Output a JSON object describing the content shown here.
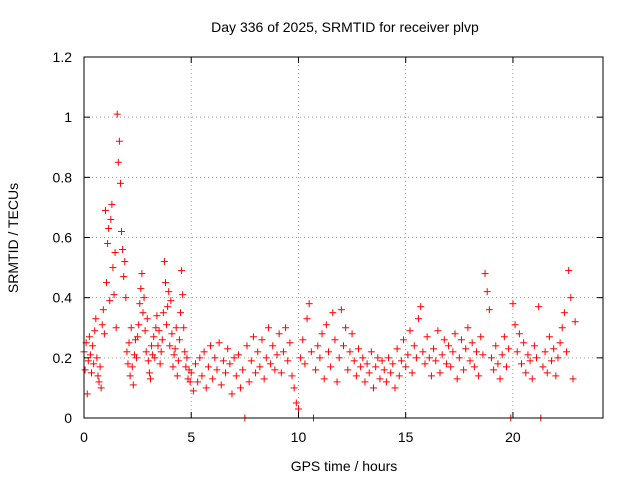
{
  "chart_data": {
    "type": "scatter",
    "title": "Day 336 of 2025, SRMTID for receiver plvp",
    "xlabel": "GPS time / hours",
    "ylabel": "SRMTID / TECUs",
    "xlim": [
      0,
      24.2
    ],
    "ylim": [
      0,
      1.2
    ],
    "xticks": [
      0,
      5,
      10,
      15,
      20
    ],
    "xtick_labels": [
      "0",
      "5",
      "10",
      "15",
      "20"
    ],
    "yticks": [
      0,
      0.2,
      0.4,
      0.6,
      0.8,
      1,
      1.2
    ],
    "ytick_labels": [
      "0",
      "0.2",
      "0.4",
      "0.6",
      "0.8",
      "1",
      "1.2"
    ],
    "grid": true,
    "marker": "+",
    "color": "#ff0000",
    "series": [
      {
        "name": "SRMTID",
        "points": [
          [
            0.0,
            0.22
          ],
          [
            0.05,
            0.16
          ],
          [
            0.1,
            0.25
          ],
          [
            0.15,
            0.08
          ],
          [
            0.2,
            0.19
          ],
          [
            0.25,
            0.27
          ],
          [
            0.3,
            0.21
          ],
          [
            0.35,
            0.15
          ],
          [
            0.4,
            0.24
          ],
          [
            0.45,
            0.18
          ],
          [
            0.5,
            0.29
          ],
          [
            0.55,
            0.33
          ],
          [
            0.6,
            0.2
          ],
          [
            0.65,
            0.14
          ],
          [
            0.7,
            0.12
          ],
          [
            0.75,
            0.17
          ],
          [
            0.8,
            0.1
          ],
          [
            0.85,
            0.31
          ],
          [
            0.9,
            0.36
          ],
          [
            0.95,
            0.28
          ],
          [
            1.0,
            0.69
          ],
          [
            1.05,
            0.45
          ],
          [
            1.1,
            0.58
          ],
          [
            1.15,
            0.63
          ],
          [
            1.2,
            0.39
          ],
          [
            1.25,
            0.66
          ],
          [
            1.3,
            0.71
          ],
          [
            1.35,
            0.5
          ],
          [
            1.4,
            0.41
          ],
          [
            1.45,
            0.55
          ],
          [
            1.5,
            0.3
          ],
          [
            1.55,
            1.01
          ],
          [
            1.6,
            0.85
          ],
          [
            1.65,
            0.92
          ],
          [
            1.7,
            0.78
          ],
          [
            1.75,
            0.62
          ],
          [
            1.8,
            0.56
          ],
          [
            1.85,
            0.47
          ],
          [
            1.9,
            0.52
          ],
          [
            1.95,
            0.4
          ],
          [
            2.0,
            0.22
          ],
          [
            2.05,
            0.18
          ],
          [
            2.1,
            0.25
          ],
          [
            2.15,
            0.14
          ],
          [
            2.2,
            0.3
          ],
          [
            2.25,
            0.17
          ],
          [
            2.3,
            0.11
          ],
          [
            2.35,
            0.21
          ],
          [
            2.4,
            0.26
          ],
          [
            2.45,
            0.2
          ],
          [
            2.5,
            0.27
          ],
          [
            2.55,
            0.31
          ],
          [
            2.6,
            0.38
          ],
          [
            2.65,
            0.43
          ],
          [
            2.7,
            0.48
          ],
          [
            2.75,
            0.35
          ],
          [
            2.8,
            0.4
          ],
          [
            2.85,
            0.29
          ],
          [
            2.9,
            0.22
          ],
          [
            2.95,
            0.33
          ],
          [
            3.0,
            0.19
          ],
          [
            3.05,
            0.15
          ],
          [
            3.1,
            0.13
          ],
          [
            3.15,
            0.24
          ],
          [
            3.2,
            0.21
          ],
          [
            3.25,
            0.27
          ],
          [
            3.3,
            0.2
          ],
          [
            3.35,
            0.3
          ],
          [
            3.4,
            0.34
          ],
          [
            3.45,
            0.24
          ],
          [
            3.5,
            0.29
          ],
          [
            3.55,
            0.18
          ],
          [
            3.6,
            0.22
          ],
          [
            3.65,
            0.26
          ],
          [
            3.7,
            0.35
          ],
          [
            3.75,
            0.52
          ],
          [
            3.8,
            0.45
          ],
          [
            3.85,
            0.31
          ],
          [
            3.9,
            0.37
          ],
          [
            3.95,
            0.42
          ],
          [
            4.0,
            0.24
          ],
          [
            4.05,
            0.39
          ],
          [
            4.1,
            0.28
          ],
          [
            4.15,
            0.17
          ],
          [
            4.2,
            0.21
          ],
          [
            4.25,
            0.23
          ],
          [
            4.3,
            0.3
          ],
          [
            4.35,
            0.14
          ],
          [
            4.4,
            0.19
          ],
          [
            4.45,
            0.26
          ],
          [
            4.5,
            0.35
          ],
          [
            4.55,
            0.49
          ],
          [
            4.6,
            0.41
          ],
          [
            4.65,
            0.3
          ],
          [
            4.7,
            0.22
          ],
          [
            4.75,
            0.17
          ],
          [
            4.8,
            0.2
          ],
          [
            4.85,
            0.13
          ],
          [
            4.9,
            0.16
          ],
          [
            4.95,
            0.12
          ],
          [
            5.0,
            0.15
          ],
          [
            5.1,
            0.09
          ],
          [
            5.2,
            0.18
          ],
          [
            5.3,
            0.12
          ],
          [
            5.4,
            0.2
          ],
          [
            5.5,
            0.14
          ],
          [
            5.6,
            0.22
          ],
          [
            5.7,
            0.1
          ],
          [
            5.8,
            0.17
          ],
          [
            5.9,
            0.24
          ],
          [
            6.0,
            0.13
          ],
          [
            6.1,
            0.2
          ],
          [
            6.2,
            0.16
          ],
          [
            6.3,
            0.25
          ],
          [
            6.4,
            0.11
          ],
          [
            6.5,
            0.19
          ],
          [
            6.6,
            0.15
          ],
          [
            6.7,
            0.23
          ],
          [
            6.8,
            0.18
          ],
          [
            6.9,
            0.08
          ],
          [
            7.0,
            0.2
          ],
          [
            7.1,
            0.14
          ],
          [
            7.2,
            0.21
          ],
          [
            7.3,
            0.1
          ],
          [
            7.4,
            0.16
          ],
          [
            7.5,
            0.0
          ],
          [
            7.6,
            0.24
          ],
          [
            7.7,
            0.12
          ],
          [
            7.8,
            0.19
          ],
          [
            7.9,
            0.27
          ],
          [
            8.0,
            0.15
          ],
          [
            8.1,
            0.22
          ],
          [
            8.2,
            0.17
          ],
          [
            8.3,
            0.26
          ],
          [
            8.4,
            0.13
          ],
          [
            8.5,
            0.2
          ],
          [
            8.6,
            0.3
          ],
          [
            8.7,
            0.18
          ],
          [
            8.8,
            0.24
          ],
          [
            8.9,
            0.16
          ],
          [
            9.0,
            0.21
          ],
          [
            9.1,
            0.28
          ],
          [
            9.2,
            0.15
          ],
          [
            9.3,
            0.22
          ],
          [
            9.4,
            0.3
          ],
          [
            9.5,
            0.19
          ],
          [
            9.6,
            0.25
          ],
          [
            9.7,
            0.14
          ],
          [
            9.8,
            0.1
          ],
          [
            9.9,
            0.05
          ],
          [
            10.0,
            0.03
          ],
          [
            10.1,
            0.2
          ],
          [
            10.2,
            0.26
          ],
          [
            10.3,
            0.18
          ],
          [
            10.4,
            0.33
          ],
          [
            10.5,
            0.38
          ],
          [
            10.6,
            0.22
          ],
          [
            10.7,
            0.0
          ],
          [
            10.8,
            0.16
          ],
          [
            10.9,
            0.24
          ],
          [
            11.0,
            0.2
          ],
          [
            11.1,
            0.28
          ],
          [
            11.2,
            0.13
          ],
          [
            11.3,
            0.31
          ],
          [
            11.4,
            0.22
          ],
          [
            11.5,
            0.17
          ],
          [
            11.6,
            0.35
          ],
          [
            11.7,
            0.26
          ],
          [
            11.8,
            0.12
          ],
          [
            11.9,
            0.2
          ],
          [
            12.0,
            0.36
          ],
          [
            12.1,
            0.24
          ],
          [
            12.2,
            0.3
          ],
          [
            12.3,
            0.16
          ],
          [
            12.4,
            0.22
          ],
          [
            12.5,
            0.28
          ],
          [
            12.6,
            0.19
          ],
          [
            12.7,
            0.14
          ],
          [
            12.8,
            0.23
          ],
          [
            12.9,
            0.17
          ],
          [
            13.0,
            0.2
          ],
          [
            13.1,
            0.12
          ],
          [
            13.2,
            0.18
          ],
          [
            13.3,
            0.15
          ],
          [
            13.4,
            0.22
          ],
          [
            13.5,
            0.1
          ],
          [
            13.6,
            0.17
          ],
          [
            13.7,
            0.2
          ],
          [
            13.8,
            0.13
          ],
          [
            13.9,
            0.19
          ],
          [
            14.0,
            0.16
          ],
          [
            14.1,
            0.12
          ],
          [
            14.2,
            0.2
          ],
          [
            14.3,
            0.15
          ],
          [
            14.4,
            0.18
          ],
          [
            14.5,
            0.1
          ],
          [
            14.6,
            0.23
          ],
          [
            14.7,
            0.14
          ],
          [
            14.8,
            0.19
          ],
          [
            14.9,
            0.26
          ],
          [
            15.0,
            0.17
          ],
          [
            15.1,
            0.21
          ],
          [
            15.2,
            0.29
          ],
          [
            15.3,
            0.15
          ],
          [
            15.4,
            0.24
          ],
          [
            15.5,
            0.2
          ],
          [
            15.6,
            0.33
          ],
          [
            15.7,
            0.37
          ],
          [
            15.8,
            0.22
          ],
          [
            15.9,
            0.18
          ],
          [
            16.0,
            0.27
          ],
          [
            16.1,
            0.2
          ],
          [
            16.2,
            0.14
          ],
          [
            16.3,
            0.23
          ],
          [
            16.4,
            0.19
          ],
          [
            16.5,
            0.29
          ],
          [
            16.6,
            0.15
          ],
          [
            16.7,
            0.21
          ],
          [
            16.8,
            0.26
          ],
          [
            16.9,
            0.18
          ],
          [
            17.0,
            0.24
          ],
          [
            17.1,
            0.17
          ],
          [
            17.2,
            0.22
          ],
          [
            17.3,
            0.28
          ],
          [
            17.4,
            0.13
          ],
          [
            17.5,
            0.2
          ],
          [
            17.6,
            0.26
          ],
          [
            17.7,
            0.16
          ],
          [
            17.8,
            0.23
          ],
          [
            17.9,
            0.3
          ],
          [
            18.0,
            0.19
          ],
          [
            18.1,
            0.25
          ],
          [
            18.2,
            0.17
          ],
          [
            18.3,
            0.22
          ],
          [
            18.4,
            0.14
          ],
          [
            18.5,
            0.27
          ],
          [
            18.6,
            0.21
          ],
          [
            18.7,
            0.48
          ],
          [
            18.8,
            0.42
          ],
          [
            18.9,
            0.36
          ],
          [
            19.0,
            0.2
          ],
          [
            19.1,
            0.16
          ],
          [
            19.2,
            0.24
          ],
          [
            19.3,
            0.18
          ],
          [
            19.4,
            0.13
          ],
          [
            19.5,
            0.21
          ],
          [
            19.6,
            0.27
          ],
          [
            19.7,
            0.17
          ],
          [
            19.8,
            0.23
          ],
          [
            19.9,
            0.0
          ],
          [
            20.0,
            0.38
          ],
          [
            20.1,
            0.31
          ],
          [
            20.2,
            0.22
          ],
          [
            20.3,
            0.28
          ],
          [
            20.4,
            0.18
          ],
          [
            20.5,
            0.25
          ],
          [
            20.6,
            0.15
          ],
          [
            20.7,
            0.21
          ],
          [
            20.8,
            0.19
          ],
          [
            20.9,
            0.13
          ],
          [
            21.0,
            0.24
          ],
          [
            21.1,
            0.2
          ],
          [
            21.2,
            0.37
          ],
          [
            21.3,
            0.0
          ],
          [
            21.4,
            0.17
          ],
          [
            21.5,
            0.22
          ],
          [
            21.6,
            0.15
          ],
          [
            21.7,
            0.27
          ],
          [
            21.8,
            0.19
          ],
          [
            21.9,
            0.23
          ],
          [
            22.0,
            0.14
          ],
          [
            22.1,
            0.2
          ],
          [
            22.2,
            0.25
          ],
          [
            22.3,
            0.3
          ],
          [
            22.4,
            0.35
          ],
          [
            22.5,
            0.22
          ],
          [
            22.6,
            0.49
          ],
          [
            22.7,
            0.4
          ],
          [
            22.8,
            0.13
          ],
          [
            22.9,
            0.32
          ]
        ]
      }
    ]
  }
}
